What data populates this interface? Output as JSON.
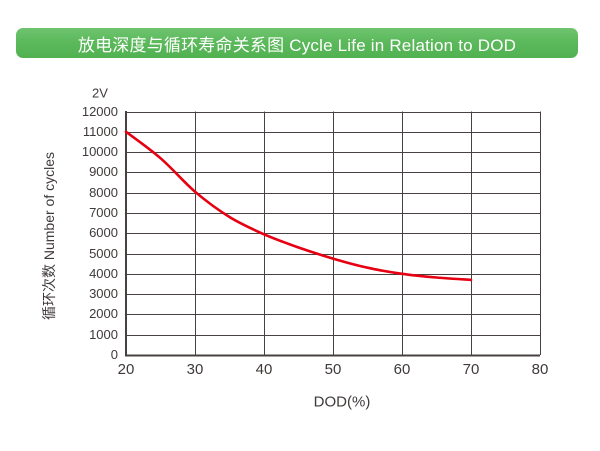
{
  "header": {
    "title": "放电深度与循环寿命关系图 Cycle Life in Relation to DOD"
  },
  "colors": {
    "banner_green": "#5cb95c",
    "curve_red": "#e60012",
    "grid": "#474241",
    "text": "#3f3a39"
  },
  "chart_data": {
    "type": "line",
    "title": "放电深度与循环寿命关系图 Cycle Life in Relation to DOD",
    "annotation": "2V",
    "xlabel": "DOD(%)",
    "ylabel": "循环次数 Number of cycles",
    "xlim": [
      20,
      80
    ],
    "ylim": [
      0,
      12000
    ],
    "x_ticks": [
      20,
      30,
      40,
      50,
      60,
      70,
      80
    ],
    "y_ticks": [
      0,
      1000,
      2000,
      3000,
      4000,
      5000,
      6000,
      7000,
      8000,
      9000,
      10000,
      11000,
      12000
    ],
    "grid": true,
    "legend_position": "none",
    "series": [
      {
        "name": "2V",
        "color": "#e60012",
        "x": [
          20,
          25,
          30,
          35,
          40,
          45,
          50,
          55,
          60,
          65,
          70
        ],
        "y": [
          11000,
          9700,
          8050,
          6800,
          5950,
          5300,
          4750,
          4300,
          4000,
          3820,
          3700
        ]
      }
    ]
  }
}
